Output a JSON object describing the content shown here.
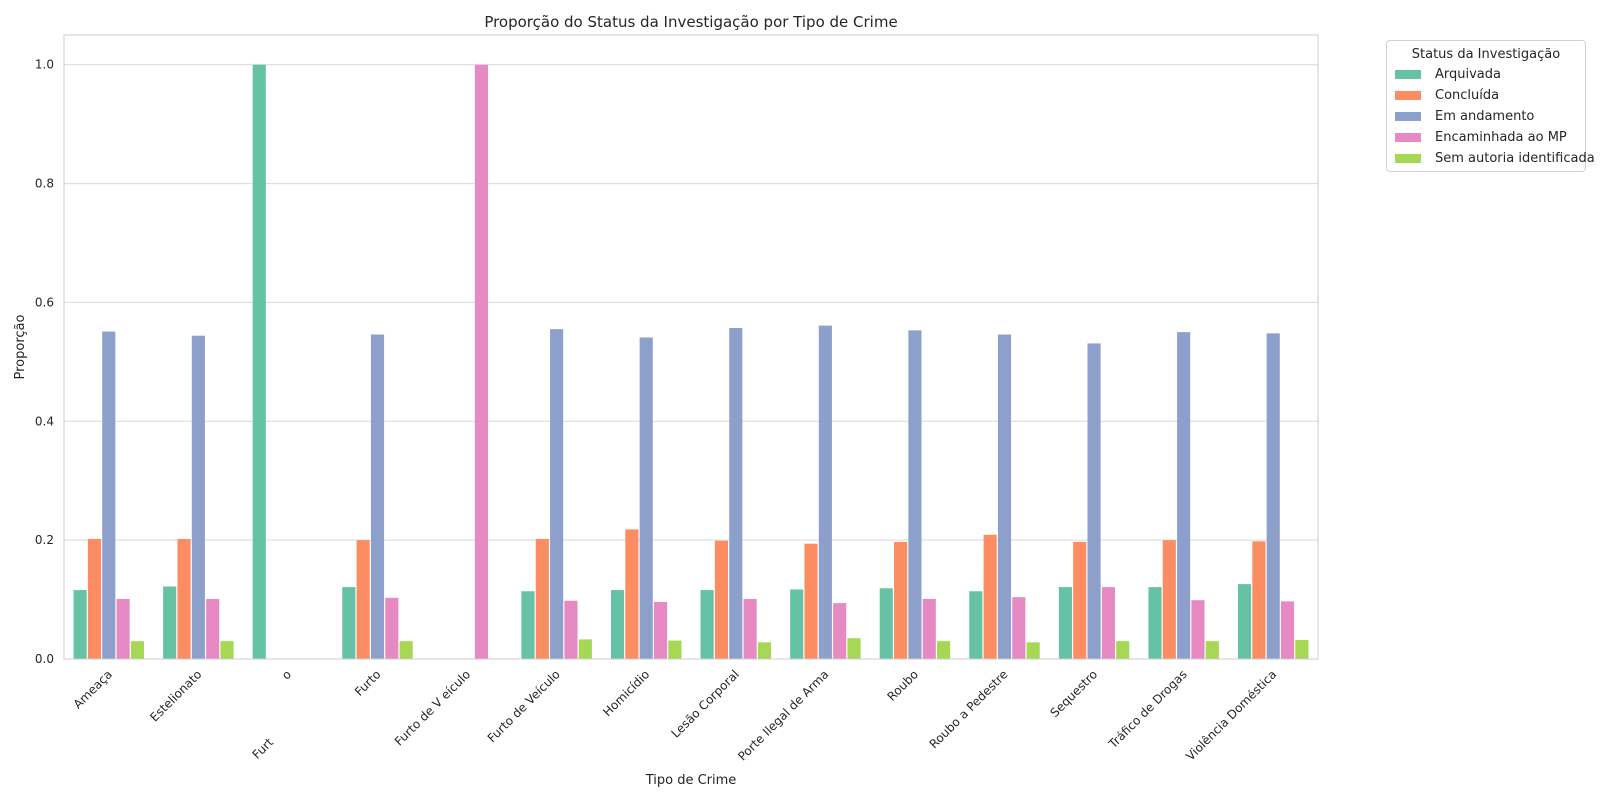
{
  "chart_data": {
    "type": "bar",
    "title": "Proporção do Status da Investigação por Tipo de Crime",
    "xlabel": "Tipo de Crime",
    "ylabel": "Proporção",
    "ylim": [
      0,
      1.05
    ],
    "yticks": [
      "0.0",
      "0.2",
      "0.4",
      "0.6",
      "0.8",
      "1.0"
    ],
    "grid": true,
    "legend_title": "Status da Investigação",
    "legend_position": "outside top-right",
    "categories": [
      "Ameaça",
      "Estelionato",
      "o",
      "Furto",
      "Furto de V eículo",
      "Furto de Veículo",
      "Homicídio",
      "Lesão Corporal",
      "Porte Ilegal de Arma",
      "Roubo",
      "Roubo a Pedestre",
      "Sequestro",
      "Tráfico de Drogas",
      "Violência Doméstica"
    ],
    "extra_tick_label": "Furt",
    "series": [
      {
        "name": "Arquivada",
        "color": "#66c2a5",
        "values": [
          0.116,
          0.122,
          1.0,
          0.121,
          0.0,
          0.114,
          0.116,
          0.116,
          0.117,
          0.119,
          0.114,
          0.121,
          0.121,
          0.126
        ]
      },
      {
        "name": "Concluída",
        "color": "#fc8d62",
        "values": [
          0.202,
          0.202,
          0.0,
          0.2,
          0.0,
          0.202,
          0.218,
          0.199,
          0.194,
          0.197,
          0.209,
          0.197,
          0.2,
          0.198
        ]
      },
      {
        "name": "Em andamento",
        "color": "#8da0cb",
        "values": [
          0.551,
          0.544,
          0.0,
          0.546,
          0.0,
          0.555,
          0.541,
          0.557,
          0.561,
          0.553,
          0.546,
          0.531,
          0.55,
          0.548
        ]
      },
      {
        "name": "Encaminhada ao MP",
        "color": "#e78ac3",
        "values": [
          0.101,
          0.101,
          0.0,
          0.103,
          1.0,
          0.098,
          0.096,
          0.101,
          0.094,
          0.101,
          0.104,
          0.121,
          0.099,
          0.097
        ]
      },
      {
        "name": "Sem autoria identificada",
        "color": "#a6d854",
        "values": [
          0.03,
          0.03,
          0.0,
          0.03,
          0.0,
          0.033,
          0.031,
          0.028,
          0.035,
          0.03,
          0.028,
          0.03,
          0.03,
          0.032
        ]
      }
    ]
  }
}
